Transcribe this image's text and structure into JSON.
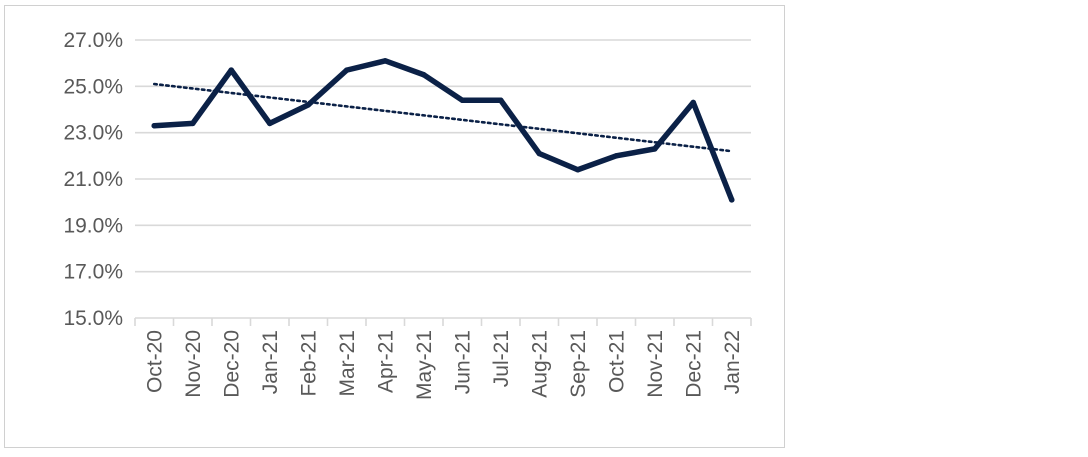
{
  "chart_data": {
    "type": "line",
    "categories": [
      "Oct-20",
      "Nov-20",
      "Dec-20",
      "Jan-21",
      "Feb-21",
      "Mar-21",
      "Apr-21",
      "May-21",
      "Jun-21",
      "Jul-21",
      "Aug-21",
      "Sep-21",
      "Oct-21",
      "Nov-21",
      "Dec-21",
      "Jan-22"
    ],
    "series": [
      {
        "values": [
          23.3,
          23.4,
          25.7,
          23.4,
          24.2,
          25.7,
          26.1,
          25.5,
          24.4,
          24.4,
          22.1,
          21.4,
          22.0,
          22.3,
          24.3,
          20.1
        ],
        "color": "#0b2147",
        "style": "solid"
      }
    ],
    "trendline": {
      "type": "linear",
      "start": 25.1,
      "end": 22.2,
      "color": "#0b2147",
      "style": "dotted"
    },
    "ylim": [
      15.0,
      27.0
    ],
    "yticks": [
      15.0,
      17.0,
      19.0,
      21.0,
      23.0,
      25.0,
      27.0
    ],
    "ytick_labels": [
      "15.0%",
      "17.0%",
      "19.0%",
      "21.0%",
      "23.0%",
      "25.0%",
      "27.0%"
    ],
    "grid": true,
    "gridline_color": "#d9d9d9",
    "title": "",
    "xlabel": "",
    "ylabel": ""
  }
}
